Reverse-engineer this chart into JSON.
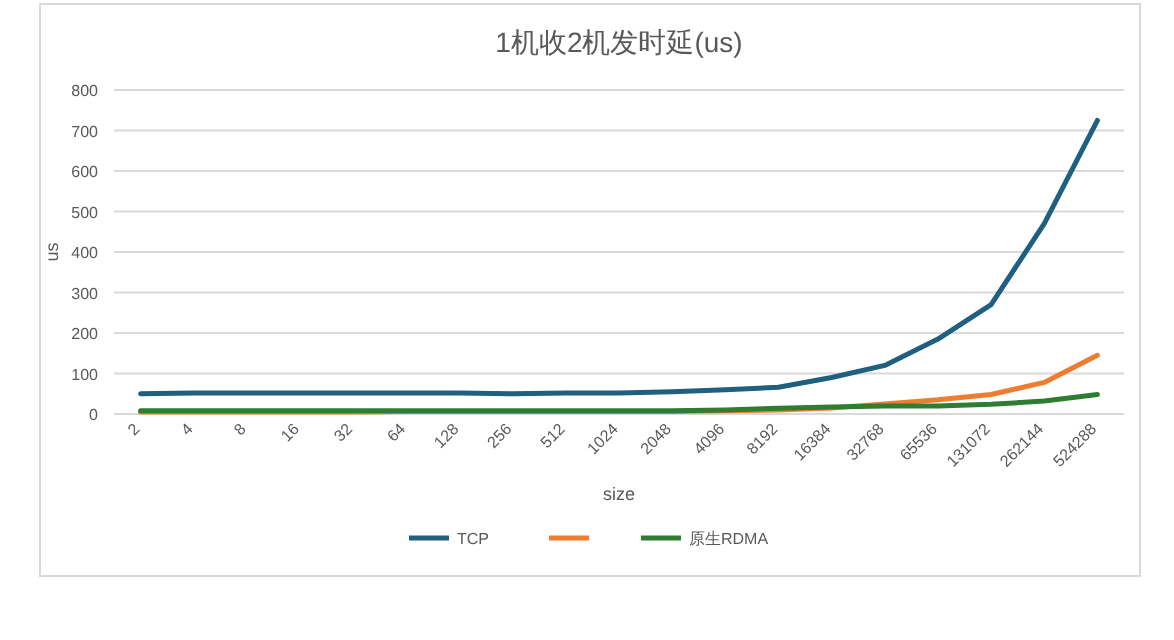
{
  "chart_data": {
    "type": "line",
    "title": "1机收2机发时延(us)",
    "xlabel": "size",
    "ylabel": "us",
    "categories": [
      "2",
      "4",
      "8",
      "16",
      "32",
      "64",
      "128",
      "256",
      "512",
      "1024",
      "2048",
      "4096",
      "8192",
      "16384",
      "32768",
      "65536",
      "131072",
      "262144",
      "524288"
    ],
    "series": [
      {
        "name": "TCP",
        "color": "#1f5f7f",
        "values": [
          50,
          52,
          52,
          52,
          52,
          52,
          52,
          50,
          52,
          52,
          55,
          60,
          66,
          90,
          120,
          185,
          270,
          470,
          725
        ]
      },
      {
        "color": "#ed7d31",
        "values": [
          5,
          5,
          5,
          5,
          5,
          6,
          6,
          6,
          6,
          6,
          6,
          8,
          10,
          15,
          25,
          35,
          48,
          78,
          145
        ]
      },
      {
        "name": "原生RDMA",
        "color": "#2e7d32",
        "values": [
          8,
          8,
          8,
          8,
          8,
          8,
          8,
          8,
          8,
          8,
          8,
          10,
          14,
          17,
          20,
          20,
          24,
          32,
          48
        ]
      }
    ],
    "ylim": [
      0,
      800
    ],
    "yticks": [
      0,
      100,
      200,
      300,
      400,
      500,
      600,
      700,
      800
    ],
    "grid": "y",
    "legend": "bottom",
    "marker": "none",
    "line_style": "solid"
  }
}
